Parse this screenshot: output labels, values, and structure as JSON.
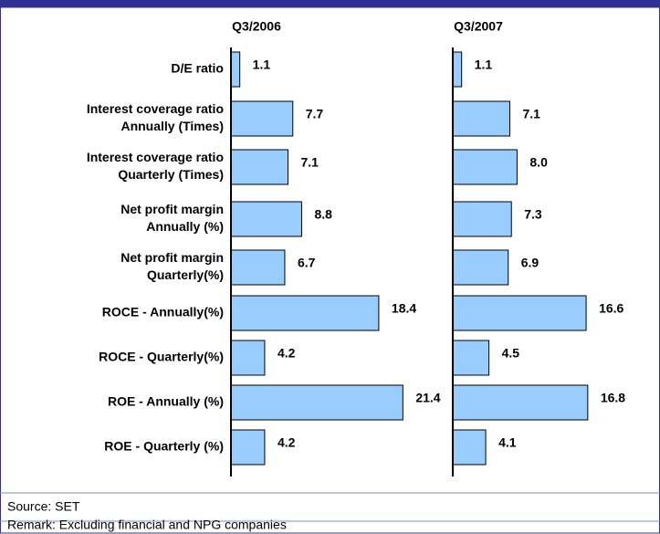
{
  "chart_data": {
    "type": "bar",
    "orientation": "horizontal",
    "categories": [
      [
        "D/E ratio"
      ],
      [
        "Interest coverage ratio",
        "Annually (Times)"
      ],
      [
        "Interest coverage ratio",
        "Quarterly (Times)"
      ],
      [
        "Net profit margin",
        "Annually (%)"
      ],
      [
        "Net profit margin",
        "Quarterly(%)"
      ],
      [
        "ROCE - Annually(%)"
      ],
      [
        "ROCE - Quarterly(%)"
      ],
      [
        "ROE - Annually (%)"
      ],
      [
        "ROE - Quarterly (%)"
      ]
    ],
    "series": [
      {
        "name": "Q3/2006",
        "color": "#99ccff",
        "values": [
          1.1,
          7.7,
          7.1,
          8.8,
          6.7,
          18.4,
          4.2,
          21.4,
          4.2
        ],
        "value_labels": [
          "1.1",
          "7.7",
          "7.1",
          "8.8",
          "6.7",
          "18.4",
          "4.2",
          "21.4",
          "4.2"
        ]
      },
      {
        "name": "Q3/2007",
        "color": "#99ccff",
        "values": [
          1.1,
          7.1,
          8.0,
          7.3,
          6.9,
          16.6,
          4.5,
          16.8,
          4.1
        ],
        "value_labels": [
          "1.1",
          "7.1",
          "8.0",
          "7.3",
          "6.9",
          "16.6",
          "4.5",
          "16.8",
          "4.1"
        ]
      }
    ],
    "source": "Source: SET",
    "remark": "Remark: Excluding financial and NPG companies"
  }
}
